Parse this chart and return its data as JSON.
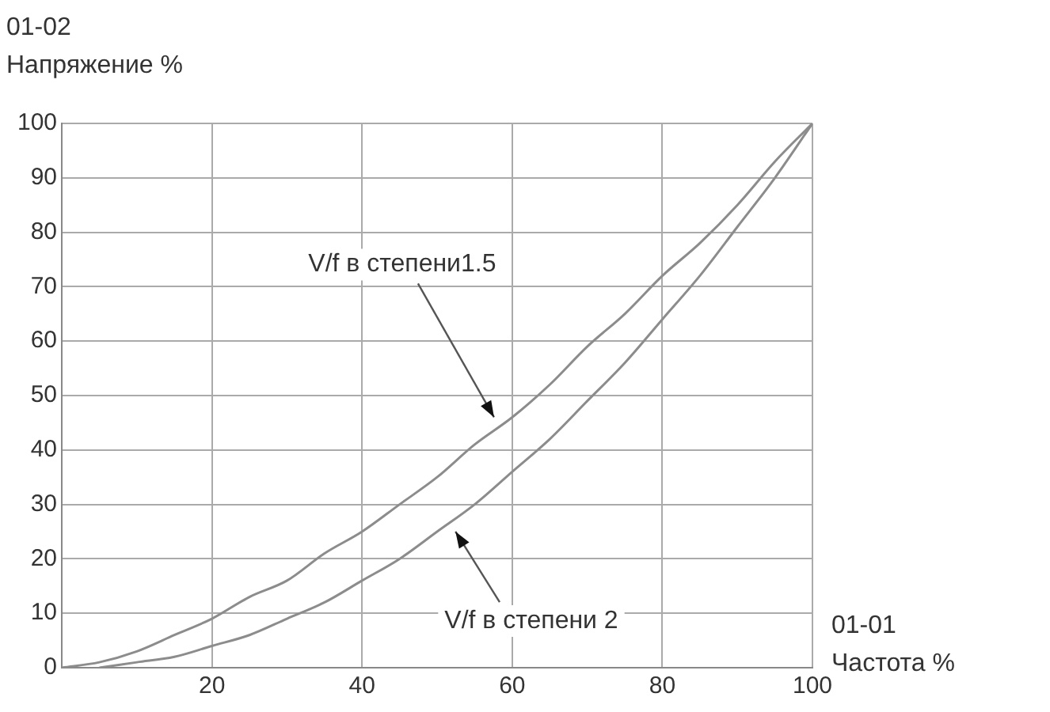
{
  "chart_data": {
    "type": "line",
    "xlabel": "01-01\nЧастота %",
    "ylabel": "01-02\nНапряжение %",
    "x": [
      0,
      5,
      10,
      15,
      20,
      25,
      30,
      35,
      40,
      45,
      50,
      55,
      60,
      65,
      70,
      75,
      80,
      85,
      90,
      95,
      100
    ],
    "series": [
      {
        "color": "#8c8c8c",
        "values": [
          0,
          1,
          3,
          6,
          9,
          13,
          16,
          21,
          25,
          30,
          35,
          41,
          46,
          52,
          59,
          65,
          72,
          78,
          85,
          93,
          100
        ]
      },
      {
        "color": "#8c8c8c",
        "x": [
          5,
          10,
          15,
          20,
          25,
          30,
          35,
          40,
          45,
          50,
          55,
          60,
          65,
          70,
          75,
          80,
          85,
          90,
          95,
          100
        ],
        "values": [
          0,
          1,
          2,
          4,
          6,
          9,
          12,
          16,
          20,
          25,
          30,
          36,
          42,
          49,
          56,
          64,
          72,
          81,
          90,
          100
        ]
      }
    ],
    "xlim": [
      0,
      100
    ],
    "xticks": [
      {
        "value": 0,
        "label": null
      },
      20,
      40,
      60,
      80,
      100
    ],
    "ylim": [
      0,
      100
    ],
    "yticks": [
      0,
      10,
      20,
      30,
      40,
      50,
      60,
      70,
      80,
      90,
      100
    ],
    "annotations": [
      {
        "text": "V/f в степени1.5",
        "x": 58,
        "y": 45
      },
      {
        "text": "V/f в степени 2",
        "x": 52,
        "y": 26
      }
    ],
    "grid": true,
    "legend": false,
    "marker": "none",
    "line_style": "solid"
  }
}
